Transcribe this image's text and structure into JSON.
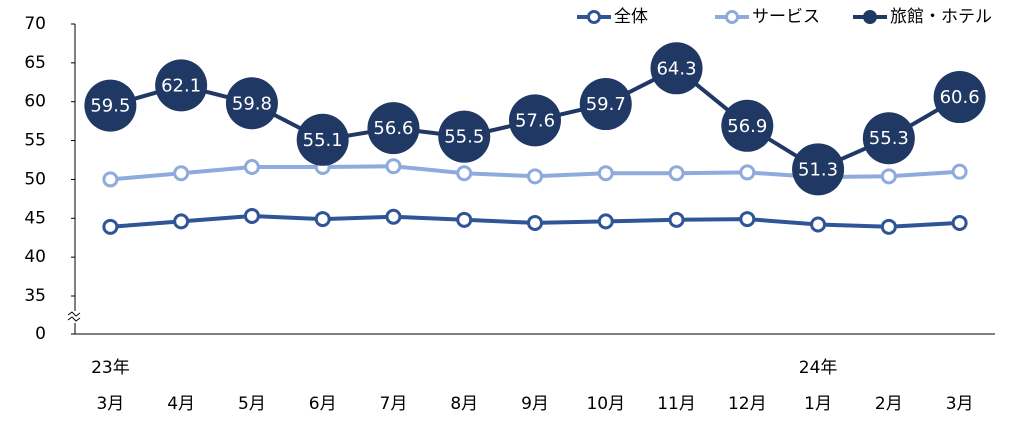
{
  "chart_data": {
    "type": "line",
    "categories": [
      "3月",
      "4月",
      "5月",
      "6月",
      "7月",
      "8月",
      "9月",
      "10月",
      "11月",
      "12月",
      "1月",
      "2月",
      "3月"
    ],
    "year_labels": [
      "23年",
      null,
      null,
      null,
      null,
      null,
      null,
      null,
      null,
      null,
      "24年",
      null,
      null
    ],
    "series": [
      {
        "name": "全体",
        "color": "#2f5597",
        "values": [
          43.9,
          44.6,
          45.3,
          44.9,
          45.2,
          44.8,
          44.4,
          44.6,
          44.8,
          44.9,
          44.2,
          43.9,
          44.4
        ]
      },
      {
        "name": "サービス",
        "color": "#8faadc",
        "values": [
          50.0,
          50.8,
          51.6,
          51.6,
          51.7,
          50.8,
          50.4,
          50.8,
          50.8,
          50.9,
          50.3,
          50.4,
          51.0
        ]
      },
      {
        "name": "旅館・ホテル",
        "color": "#203864",
        "values": [
          59.5,
          62.1,
          59.8,
          55.1,
          56.6,
          55.5,
          57.6,
          59.7,
          64.3,
          56.9,
          51.3,
          55.3,
          60.6
        ],
        "data_labels": true
      }
    ],
    "ylim": [
      0,
      70
    ],
    "yticks": [
      0,
      35,
      40,
      45,
      50,
      55,
      60,
      65,
      70
    ],
    "axis_break": [
      0,
      35
    ],
    "grid": false,
    "legend": "top-right"
  }
}
